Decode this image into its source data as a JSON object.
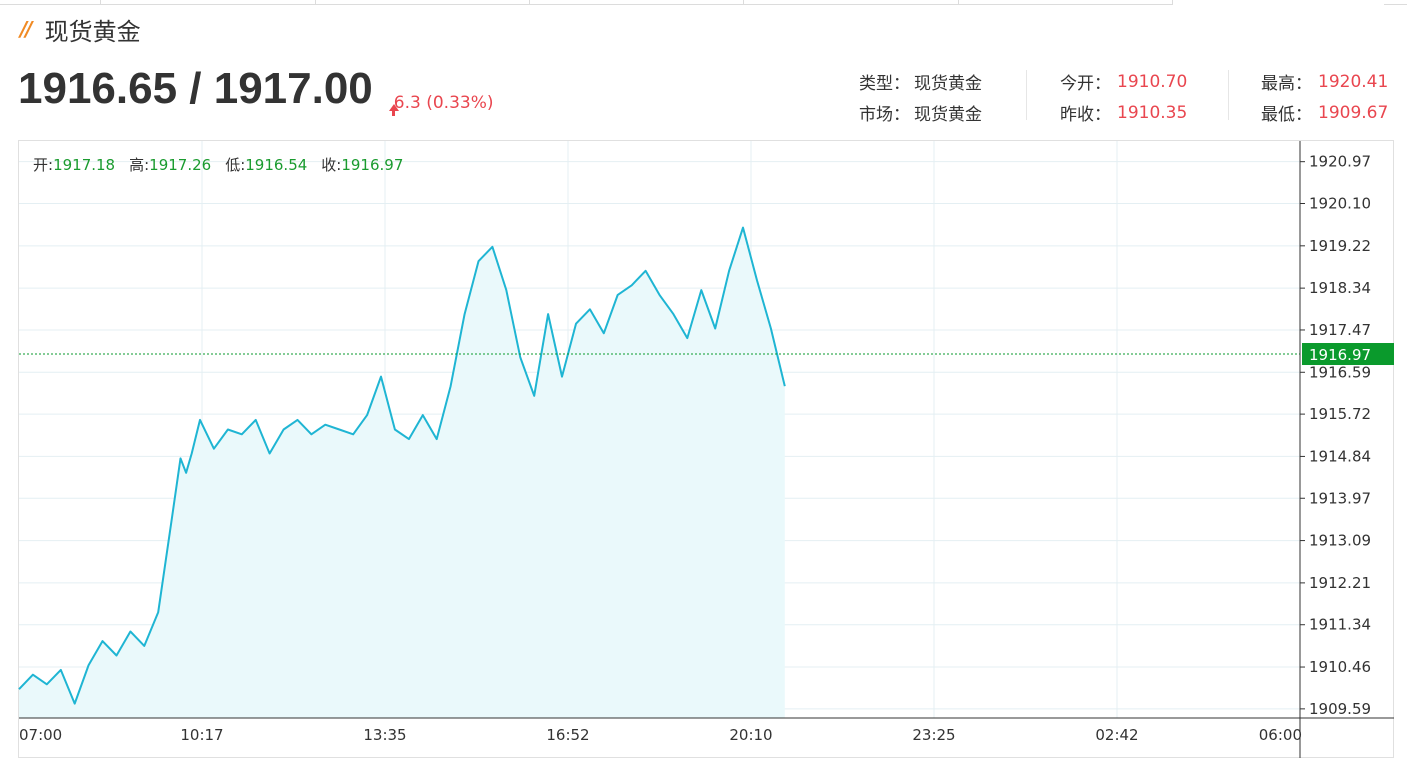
{
  "header": {
    "title": "现货黄金",
    "price": "1916.65 / 1917.00",
    "change": "6.3 (0.33%)"
  },
  "info": {
    "type_label": "类型：",
    "type_value": "现货黄金",
    "market_label": "市场：",
    "market_value": "现货黄金",
    "open_label": "今开：",
    "open_value": "1910.70",
    "prev_close_label": "昨收：",
    "prev_close_value": "1910.35",
    "high_label": "最高：",
    "high_value": "1920.41",
    "low_label": "最低：",
    "low_value": "1909.67"
  },
  "ohlc": {
    "open_label": "开:",
    "open_value": "1917.18",
    "high_label": "高:",
    "high_value": "1917.26",
    "low_label": "低:",
    "low_value": "1916.54",
    "close_label": "收:",
    "close_value": "1916.97"
  },
  "colors": {
    "line": "#1fb5d3",
    "area": "#eaf9fb",
    "grid": "#e4eff3",
    "current": "#0a9a2c",
    "up": "#e9464f",
    "brand": "#f08a24"
  },
  "chart_data": {
    "type": "area",
    "title": "",
    "xlabel": "",
    "ylabel": "",
    "x_ticks": [
      "07:00",
      "10:17",
      "13:35",
      "16:52",
      "20:10",
      "23:25",
      "02:42",
      "06:00"
    ],
    "y_ticks": [
      "1920.97",
      "1920.10",
      "1919.22",
      "1918.34",
      "1917.47",
      "1916.59",
      "1915.72",
      "1914.84",
      "1913.97",
      "1913.09",
      "1912.21",
      "1911.34",
      "1910.46",
      "1909.59"
    ],
    "x_range_hours": [
      0,
      23
    ],
    "ylim": [
      1909.4,
      1921.4
    ],
    "current_price": "1916.97",
    "grid": true,
    "series": [
      {
        "x_hours": [
          0.0,
          0.25,
          0.5,
          0.75,
          1.0,
          1.25,
          1.5,
          1.75,
          2.0,
          2.25,
          2.5,
          2.75,
          2.9,
          3.0,
          3.1,
          3.25,
          3.5,
          3.75,
          4.0,
          4.25,
          4.5,
          4.75,
          5.0,
          5.25,
          5.5,
          5.75,
          6.0,
          6.25,
          6.5,
          6.75,
          7.0,
          7.25,
          7.5,
          7.75,
          8.0,
          8.25,
          8.5,
          8.75,
          9.0,
          9.25,
          9.5,
          9.75,
          10.0,
          10.25,
          10.5,
          10.75,
          11.0,
          11.25,
          11.5,
          11.75,
          12.0,
          12.25,
          12.5,
          12.75,
          13.0,
          13.25,
          13.5,
          13.75
        ],
        "values": [
          1910.0,
          1910.3,
          1910.1,
          1910.4,
          1909.7,
          1910.5,
          1911.0,
          1910.7,
          1911.2,
          1910.9,
          1911.6,
          1913.6,
          1914.8,
          1914.5,
          1914.9,
          1915.6,
          1915.0,
          1915.4,
          1915.3,
          1915.6,
          1914.9,
          1915.4,
          1915.6,
          1915.3,
          1915.5,
          1915.4,
          1915.3,
          1915.7,
          1916.5,
          1915.4,
          1915.2,
          1915.7,
          1915.2,
          1916.3,
          1917.8,
          1918.9,
          1919.2,
          1918.3,
          1916.9,
          1916.1,
          1917.8,
          1916.5,
          1917.6,
          1917.9,
          1917.4,
          1918.2,
          1918.4,
          1918.7,
          1918.2,
          1917.8,
          1917.3,
          1918.3,
          1917.5,
          1918.7,
          1919.6,
          1918.5,
          1917.5,
          1916.3
        ]
      }
    ]
  }
}
